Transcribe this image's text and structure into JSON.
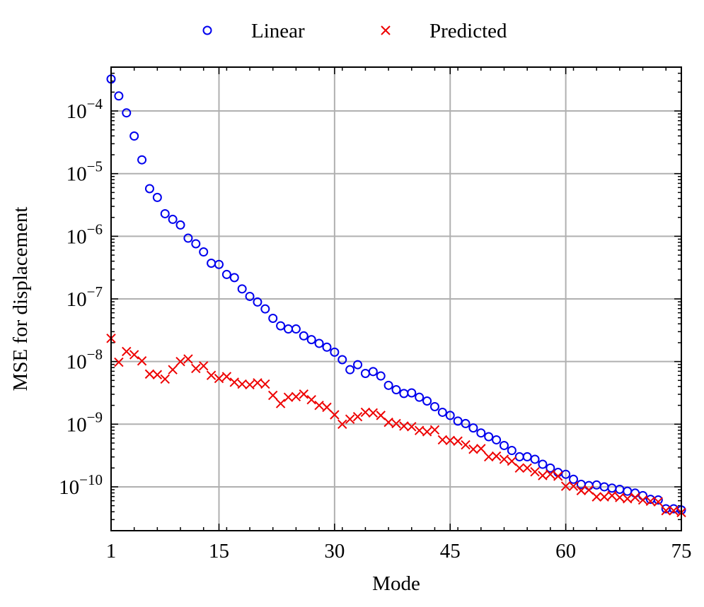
{
  "chart_data": {
    "type": "scatter",
    "title": "",
    "xlabel": "Mode",
    "ylabel": "MSE for displacement",
    "xscale": "linear",
    "yscale": "log",
    "xlim": [
      1,
      75
    ],
    "ylim_log10": [
      -10.7,
      -3.3
    ],
    "xticks": [
      1,
      15,
      30,
      45,
      60,
      75
    ],
    "xtick_labels": [
      "1",
      "15",
      "30",
      "45",
      "60",
      "75"
    ],
    "yticks_exp": [
      -4,
      -5,
      -6,
      -7,
      -8,
      -9,
      -10
    ],
    "ytick_labels": [
      {
        "base": "10",
        "exp": "−4"
      },
      {
        "base": "10",
        "exp": "−5"
      },
      {
        "base": "10",
        "exp": "−6"
      },
      {
        "base": "10",
        "exp": "−7"
      },
      {
        "base": "10",
        "exp": "−8"
      },
      {
        "base": "10",
        "exp": "−9"
      },
      {
        "base": "10",
        "exp": "−10"
      }
    ],
    "grid": true,
    "legend_position": "top-center, above plot",
    "legend": [
      {
        "name": "Linear",
        "marker": "circle",
        "color": "#0000ee"
      },
      {
        "name": "Predicted",
        "marker": "x",
        "color": "#ee0000"
      }
    ],
    "series": [
      {
        "name": "Linear",
        "x": [
          1,
          2,
          3,
          4,
          5,
          6,
          7,
          8,
          9,
          10,
          11,
          12,
          13,
          14,
          15,
          16,
          17,
          18,
          19,
          20,
          21,
          22,
          23,
          24,
          25,
          26,
          27,
          28,
          29,
          30,
          31,
          32,
          33,
          34,
          35,
          36,
          37,
          38,
          39,
          40,
          41,
          42,
          43,
          44,
          45,
          46,
          47,
          48,
          49,
          50,
          51,
          52,
          53,
          54,
          55,
          56,
          57,
          58,
          59,
          60,
          61,
          62,
          63,
          64,
          65,
          66,
          67,
          68,
          69,
          70,
          71,
          72,
          73,
          74,
          75
        ],
        "log10_y": [
          -3.49,
          -3.76,
          -4.03,
          -4.4,
          -4.78,
          -5.24,
          -5.38,
          -5.64,
          -5.73,
          -5.82,
          -6.03,
          -6.12,
          -6.25,
          -6.43,
          -6.45,
          -6.61,
          -6.66,
          -6.84,
          -6.96,
          -7.05,
          -7.16,
          -7.31,
          -7.43,
          -7.48,
          -7.48,
          -7.59,
          -7.65,
          -7.71,
          -7.77,
          -7.85,
          -7.97,
          -8.13,
          -8.05,
          -8.19,
          -8.16,
          -8.23,
          -8.38,
          -8.45,
          -8.51,
          -8.5,
          -8.57,
          -8.63,
          -8.72,
          -8.81,
          -8.86,
          -8.95,
          -8.99,
          -9.06,
          -9.14,
          -9.2,
          -9.25,
          -9.34,
          -9.42,
          -9.52,
          -9.52,
          -9.56,
          -9.64,
          -9.7,
          -9.77,
          -9.8,
          -9.88,
          -9.96,
          -9.98,
          -9.97,
          -10.0,
          -10.02,
          -10.04,
          -10.07,
          -10.1,
          -10.14,
          -10.2,
          -10.21,
          -10.35,
          -10.35,
          -10.37
        ]
      },
      {
        "name": "Predicted",
        "x": [
          1,
          2,
          3,
          4,
          5,
          6,
          7,
          8,
          9,
          10,
          11,
          12,
          13,
          14,
          15,
          16,
          17,
          18,
          19,
          20,
          21,
          22,
          23,
          24,
          25,
          26,
          27,
          28,
          29,
          30,
          31,
          32,
          33,
          34,
          35,
          36,
          37,
          38,
          39,
          40,
          41,
          42,
          43,
          44,
          45,
          46,
          47,
          48,
          49,
          50,
          51,
          52,
          53,
          54,
          55,
          56,
          57,
          58,
          59,
          60,
          61,
          62,
          63,
          64,
          65,
          66,
          67,
          68,
          69,
          70,
          71,
          72,
          73,
          74,
          75
        ],
        "log10_y": [
          -7.63,
          -8.01,
          -7.84,
          -7.89,
          -7.99,
          -8.2,
          -8.21,
          -8.28,
          -8.13,
          -8.0,
          -7.96,
          -8.11,
          -8.07,
          -8.22,
          -8.27,
          -8.24,
          -8.33,
          -8.36,
          -8.37,
          -8.34,
          -8.36,
          -8.54,
          -8.67,
          -8.57,
          -8.56,
          -8.52,
          -8.61,
          -8.7,
          -8.73,
          -8.85,
          -9.0,
          -8.92,
          -8.88,
          -8.81,
          -8.82,
          -8.86,
          -8.97,
          -8.99,
          -9.03,
          -9.04,
          -9.1,
          -9.12,
          -9.09,
          -9.25,
          -9.26,
          -9.27,
          -9.33,
          -9.4,
          -9.39,
          -9.52,
          -9.51,
          -9.56,
          -9.59,
          -9.7,
          -9.7,
          -9.76,
          -9.82,
          -9.8,
          -9.83,
          -9.99,
          -9.99,
          -10.06,
          -10.05,
          -10.16,
          -10.16,
          -10.14,
          -10.17,
          -10.19,
          -10.17,
          -10.21,
          -10.23,
          -10.24,
          -10.38,
          -10.38,
          -10.41
        ]
      }
    ]
  }
}
